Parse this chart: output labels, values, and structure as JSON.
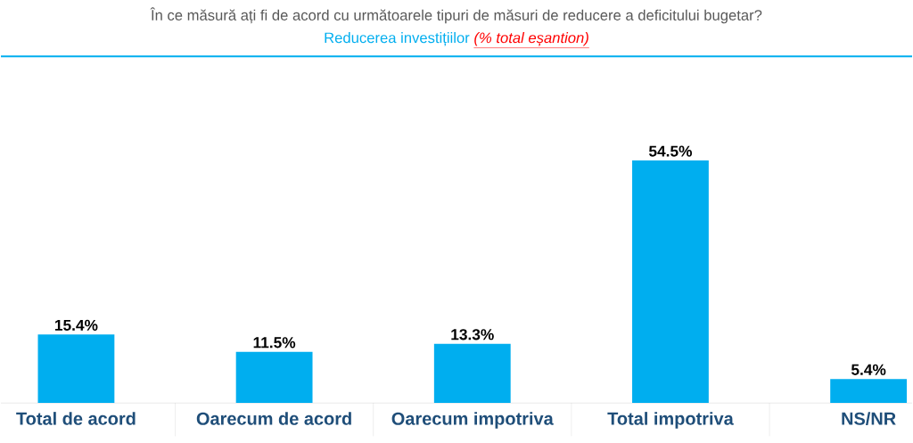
{
  "chart_data": {
    "type": "bar",
    "title": "În ce măsură ați fi de acord cu următoarele tipuri de măsuri de reducere a deficitului bugetar?",
    "subtitle": "Reducerea investițiilor",
    "annotations": [
      "(% total eșantion)"
    ],
    "categories": [
      "Total de acord",
      "Oarecum de acord",
      "Oarecum impotriva",
      "Total impotriva",
      "NS/NR"
    ],
    "values": [
      15.4,
      11.5,
      13.3,
      54.5,
      5.4
    ],
    "value_labels": [
      "15.4%",
      "11.5%",
      "13.3%",
      "54.5%",
      "5.4%"
    ],
    "color": "#00aeef"
  }
}
